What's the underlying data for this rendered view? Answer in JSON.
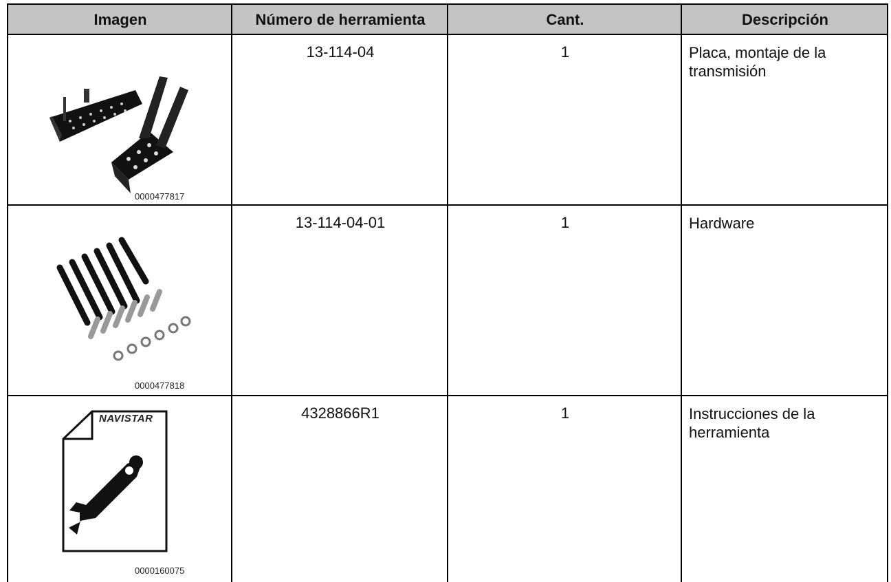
{
  "header": {
    "columns": [
      "Imagen",
      "Número de herramienta",
      "Cant.",
      "Descripción"
    ]
  },
  "table": {
    "rows": [
      {
        "image_id": "0000477817",
        "tool_number": "13-114-04",
        "quantity": "1",
        "description": "Placa, montaje de la transmisión"
      },
      {
        "image_id": "0000477818",
        "tool_number": "13-114-04-01",
        "quantity": "1",
        "description": "Hardware"
      },
      {
        "image_id": "0000160075",
        "logo": "NAVISTAR",
        "tool_number": "4328866R1",
        "quantity": "1",
        "description": "Instrucciones de la herramienta"
      }
    ]
  }
}
